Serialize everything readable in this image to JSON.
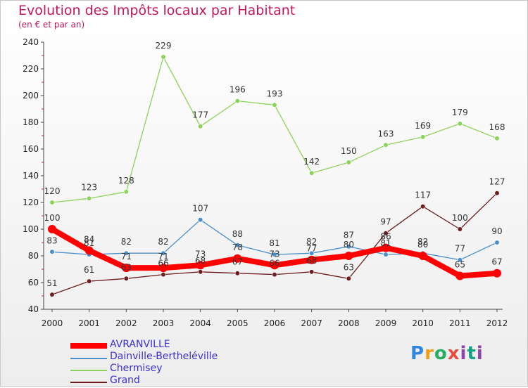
{
  "chart_data": {
    "type": "line",
    "title": "Evolution des Impôts locaux par Habitant",
    "subtitle": "(en € et par an)",
    "x": [
      "2000",
      "2001",
      "2002",
      "2003",
      "2004",
      "2005",
      "2006",
      "2007",
      "2008",
      "2009",
      "2010",
      "2011",
      "2012"
    ],
    "ylim": [
      40,
      240
    ],
    "yticks": [
      "40",
      "60",
      "80",
      "100",
      "120",
      "140",
      "160",
      "180",
      "200",
      "220",
      "240"
    ],
    "grid": false,
    "legend_position": "bottom-left",
    "series": [
      {
        "name": "Chermisey",
        "color": "#8bd35a",
        "values": [
          120,
          123,
          128,
          229,
          177,
          196,
          193,
          142,
          150,
          163,
          169,
          179,
          168
        ]
      },
      {
        "name": "Dainville-Bertheléville",
        "color": "#4a8fcc",
        "values": [
          83,
          81,
          82,
          82,
          107,
          88,
          81,
          82,
          87,
          81,
          82,
          77,
          90
        ]
      },
      {
        "name": "Grand",
        "color": "#6e1e1e",
        "values": [
          51,
          61,
          63,
          66,
          68,
          67,
          66,
          68,
          63,
          97,
          117,
          100,
          127
        ]
      },
      {
        "name": "AVRANVILLE",
        "color": "#ff0000",
        "values": [
          100,
          84,
          71,
          71,
          73,
          78,
          73,
          77,
          80,
          86,
          80,
          65,
          67
        ]
      }
    ],
    "legend_order": [
      "AVRANVILLE",
      "Dainville-Bertheléville",
      "Chermisey",
      "Grand"
    ]
  },
  "logo": {
    "text": "Proxiti"
  }
}
